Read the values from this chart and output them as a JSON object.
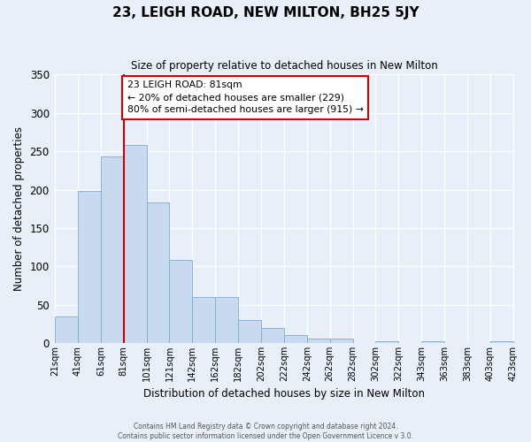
{
  "title": "23, LEIGH ROAD, NEW MILTON, BH25 5JY",
  "subtitle": "Size of property relative to detached houses in New Milton",
  "xlabel": "Distribution of detached houses by size in New Milton",
  "ylabel": "Number of detached properties",
  "bar_heights": [
    35,
    198,
    243,
    258,
    183,
    108,
    60,
    60,
    30,
    20,
    10,
    6,
    6,
    0,
    2,
    0,
    2,
    0,
    0,
    2
  ],
  "x_labels": [
    "21sqm",
    "41sqm",
    "61sqm",
    "81sqm",
    "101sqm",
    "121sqm",
    "142sqm",
    "162sqm",
    "182sqm",
    "202sqm",
    "222sqm",
    "242sqm",
    "262sqm",
    "282sqm",
    "302sqm",
    "322sqm",
    "343sqm",
    "363sqm",
    "383sqm",
    "403sqm",
    "423sqm"
  ],
  "bar_color": "#c9d9ef",
  "bar_edgecolor": "#7badd4",
  "vline_x": 3,
  "vline_color": "#cc0000",
  "ylim": [
    0,
    350
  ],
  "yticks": [
    0,
    50,
    100,
    150,
    200,
    250,
    300,
    350
  ],
  "annotation_title": "23 LEIGH ROAD: 81sqm",
  "annotation_line1": "← 20% of detached houses are smaller (229)",
  "annotation_line2": "80% of semi-detached houses are larger (915) →",
  "annotation_box_facecolor": "#ffffff",
  "annotation_box_edgecolor": "#cc0000",
  "footer_line1": "Contains HM Land Registry data © Crown copyright and database right 2024.",
  "footer_line2": "Contains public sector information licensed under the Open Government Licence v 3.0.",
  "bg_color": "#e8eff8",
  "grid_color": "#ffffff"
}
